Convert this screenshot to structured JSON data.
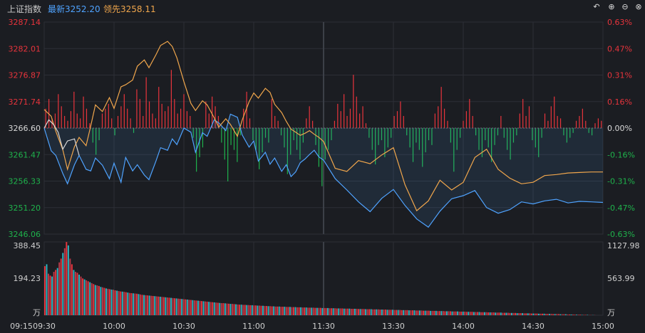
{
  "header": {
    "index_name": "上证指数",
    "latest_label": "最新3252.20",
    "leading_label": "领先3258.11",
    "icons": [
      "undo-icon",
      "zoom-in-icon",
      "zoom-out-icon",
      "close-icon"
    ]
  },
  "colors": {
    "background": "#1b1d22",
    "grid": "#2c2f36",
    "up": "#e8343c",
    "down": "#1fb34c",
    "latest_line": "#4fa3ff",
    "leading_line": "#f0a64c",
    "neutral": "#d8d8d8",
    "volume_teal": "#2bb8c4"
  },
  "chart_data": {
    "type": "line",
    "price_axis": {
      "left_ticks": [
        "3287.14",
        "3282.01",
        "3276.87",
        "3271.74",
        "3266.60",
        "3261.47",
        "3256.33",
        "3251.20",
        "3246.06"
      ],
      "right_ticks": [
        "0.63%",
        "0.47%",
        "0.31%",
        "0.16%",
        "0.00%",
        "-0.16%",
        "-0.31%",
        "-0.47%",
        "-0.63%"
      ],
      "ylim": [
        3246.06,
        3287.14
      ],
      "prev_close": 3266.6
    },
    "volume_axis": {
      "left_ticks": [
        "388.45",
        "194.23",
        "万"
      ],
      "right_ticks": [
        "1127.98",
        "563.99",
        "万"
      ],
      "ylim": [
        0,
        388.45
      ]
    },
    "time_axis": {
      "ticks": [
        "09:15",
        "09:30",
        "10:00",
        "10:30",
        "11:00",
        "11:30",
        "13:30",
        "14:00",
        "14:30",
        "15:00"
      ]
    },
    "series": [
      {
        "name": "最新",
        "color": "#4fa3ff",
        "x": [
          0,
          3,
          5,
          8,
          10,
          13,
          15,
          18,
          20,
          22,
          25,
          28,
          30,
          33,
          35,
          38,
          40,
          43,
          45,
          48,
          50,
          53,
          55,
          57,
          60,
          63,
          65,
          68,
          70,
          73,
          75,
          78,
          80,
          83,
          85,
          88,
          90,
          92,
          95,
          97,
          99,
          102,
          104,
          106,
          108,
          110,
          112,
          114,
          116,
          118,
          120,
          125,
          130,
          135,
          140,
          145,
          150,
          155,
          160,
          165,
          170,
          175,
          180,
          185,
          190,
          195,
          200,
          205,
          210,
          215,
          220,
          225,
          230,
          235,
          240
        ],
        "y": [
          3266.6,
          3262.2,
          3261.3,
          3257.8,
          3255.8,
          3259.5,
          3261.3,
          3258.6,
          3258.3,
          3260.8,
          3259.4,
          3256.8,
          3259.8,
          3256.1,
          3260.9,
          3258.3,
          3259.5,
          3257.5,
          3256.6,
          3260.2,
          3262.8,
          3262.3,
          3264.5,
          3263.4,
          3266.6,
          3265.8,
          3261.9,
          3265.7,
          3265.0,
          3268.2,
          3267.6,
          3266.1,
          3269.3,
          3268.7,
          3265.3,
          3262.9,
          3264.1,
          3260.2,
          3261.9,
          3259.6,
          3260.8,
          3258.2,
          3259.5,
          3257.2,
          3258.1,
          3259.9,
          3260.6,
          3261.5,
          3262.3,
          3261.0,
          3260.4,
          3256.8,
          3254.6,
          3252.3,
          3250.4,
          3253.0,
          3254.7,
          3251.6,
          3249.0,
          3247.4,
          3250.5,
          3252.9,
          3253.5,
          3254.5,
          3251.2,
          3250.1,
          3250.8,
          3252.3,
          3251.9,
          3252.5,
          3252.8,
          3252.1,
          3252.4,
          3252.3,
          3252.2
        ]
      },
      {
        "name": "领先",
        "color": "#f0a64c",
        "x": [
          0,
          3,
          5,
          8,
          10,
          13,
          15,
          18,
          20,
          22,
          25,
          28,
          30,
          33,
          35,
          38,
          40,
          43,
          45,
          48,
          50,
          53,
          55,
          57,
          60,
          63,
          65,
          68,
          70,
          73,
          75,
          78,
          80,
          83,
          85,
          88,
          90,
          92,
          95,
          97,
          99,
          102,
          104,
          106,
          108,
          110,
          112,
          114,
          116,
          118,
          120,
          125,
          130,
          135,
          140,
          145,
          150,
          155,
          160,
          165,
          170,
          175,
          180,
          185,
          190,
          195,
          200,
          205,
          210,
          215,
          220,
          225,
          230,
          235,
          240
        ],
        "y": [
          3270.2,
          3268.9,
          3266.0,
          3262.4,
          3258.6,
          3263.0,
          3264.8,
          3263.2,
          3267.0,
          3271.1,
          3269.8,
          3272.5,
          3270.4,
          3274.6,
          3275.0,
          3275.9,
          3278.6,
          3279.8,
          3278.3,
          3280.8,
          3282.6,
          3283.4,
          3282.4,
          3280.2,
          3275.6,
          3271.4,
          3270.0,
          3271.9,
          3271.1,
          3268.6,
          3266.8,
          3268.4,
          3267.3,
          3265.0,
          3268.1,
          3271.7,
          3273.4,
          3272.4,
          3274.3,
          3273.5,
          3271.2,
          3269.6,
          3267.9,
          3266.4,
          3265.8,
          3265.2,
          3265.6,
          3266.1,
          3265.4,
          3264.8,
          3264.0,
          3258.8,
          3258.2,
          3260.3,
          3259.7,
          3261.4,
          3262.8,
          3255.6,
          3250.6,
          3252.5,
          3256.5,
          3254.6,
          3256.1,
          3260.9,
          3262.5,
          3258.6,
          3256.9,
          3255.8,
          3256.1,
          3257.4,
          3257.6,
          3257.9,
          3258.0,
          3258.1,
          3258.1
        ]
      },
      {
        "name": "09:15-09:30",
        "color": "#d8d8d8",
        "x": [
          0,
          2,
          4,
          6,
          8,
          10,
          13,
          15
        ],
        "y": [
          3266.6,
          3268.2,
          3267.3,
          3265.8,
          3262.5,
          3264.1,
          3264.5,
          3261.3
        ]
      }
    ],
    "breadth_bars": {
      "description": "difference bars around 0.00% baseline",
      "values": [
        0.8,
        1.2,
        0.4,
        0.6,
        1.4,
        0.9,
        0.5,
        0.3,
        0.7,
        1.5,
        0.6,
        0.4,
        1.3,
        0.8,
        0.2,
        -0.6,
        -1.1,
        -0.5,
        0.6,
        0.8,
        1.0,
        0.4,
        -0.3,
        0.5,
        0.9,
        1.4,
        0.8,
        0.4,
        -0.2,
        1.6,
        1.2,
        0.5,
        2.1,
        1.1,
        0.6,
        0.4,
        1.7,
        1.0,
        0.7,
        0.9,
        2.4,
        1.2,
        0.6,
        0.8,
        1.4,
        0.7,
        0.5,
        -0.4,
        -1.8,
        -1.2,
        -0.8,
        1.1,
        0.6,
        1.3,
        0.9,
        0.5,
        -0.6,
        -1.3,
        -2.2,
        -0.7,
        -0.9,
        -1.4,
        -0.3,
        0.8,
        1.5,
        0.4,
        -0.5,
        -0.9,
        -1.7,
        -1.0,
        -0.4,
        -0.6,
        1.2,
        0.5,
        0.3,
        -0.3,
        -0.8,
        -1.9,
        -1.1,
        -0.5,
        -0.9,
        -1.3,
        -0.6,
        0.4,
        0.9,
        0.3,
        -0.7,
        -1.6,
        -2.4,
        -1.3,
        -0.9,
        -0.5,
        0.3,
        1.0,
        0.7,
        1.4,
        0.5,
        0.8,
        2.2,
        1.3,
        0.6,
        0.9,
        0.2,
        -0.4,
        -0.9,
        -1.5,
        -0.7,
        -0.5,
        -1.2,
        -0.8,
        -0.4,
        0.5,
        0.7,
        1.1,
        0.5,
        -0.3,
        -0.8,
        -1.4,
        -0.6,
        -0.9,
        -1.6,
        -1.0,
        -0.5,
        -0.7,
        0.6,
        0.9,
        1.7,
        0.8,
        0.3,
        -0.6,
        -1.8,
        -0.9,
        -0.4,
        0.3,
        0.7,
        1.2,
        0.5,
        -0.3,
        -0.9,
        -1.2,
        -0.5,
        -0.8,
        -1.4,
        -0.7,
        -0.3,
        0.5,
        -0.4,
        -0.9,
        -1.3,
        -0.6,
        -0.3,
        0.6,
        1.2,
        0.5,
        0.9,
        -0.5,
        -0.8,
        -1.2,
        -0.4,
        0.6,
        0.3,
        0.9,
        1.3,
        0.5,
        0.4,
        -0.3,
        -0.6,
        -0.4,
        -0.2,
        0.3,
        0.5,
        0.8,
        0.3,
        -0.2,
        -0.3,
        0.2,
        0.4,
        0.3
      ]
    },
    "volume_bars": {
      "x_first": 0,
      "values": [
        260,
        270,
        220,
        210,
        205,
        230,
        240,
        250,
        280,
        300,
        330,
        355,
        388,
        370,
        300,
        270,
        240,
        230,
        225,
        215,
        205,
        195,
        190,
        185,
        180,
        175,
        170,
        165,
        160,
        158,
        155,
        150,
        148,
        145,
        142,
        140,
        138,
        136,
        135,
        132,
        130,
        128,
        126,
        125,
        124,
        122,
        120,
        118,
        117,
        116,
        115,
        114,
        112,
        110,
        108,
        107,
        106,
        105,
        104,
        103,
        102,
        101,
        100,
        99,
        98,
        97,
        96,
        95,
        94,
        93,
        92,
        91,
        90,
        89,
        88,
        87,
        86,
        85,
        84,
        83,
        82,
        81,
        80,
        79,
        78,
        77,
        76,
        75,
        74,
        73,
        72,
        71,
        70,
        69,
        68,
        67,
        66,
        65,
        64,
        64,
        63,
        62,
        61,
        60,
        60,
        59,
        58,
        57,
        56,
        56,
        55,
        55,
        54,
        54,
        53,
        53,
        52,
        52,
        51,
        51,
        50,
        50,
        49,
        49,
        48,
        48,
        47,
        47,
        46,
        46,
        46,
        45,
        45,
        45,
        44,
        44,
        44,
        43,
        43,
        43,
        42,
        42,
        42,
        41,
        41,
        41,
        40,
        40,
        40,
        40,
        39,
        39,
        39,
        39,
        38,
        38,
        38,
        38,
        37,
        37,
        37,
        37,
        36,
        36,
        36,
        36,
        35,
        35,
        35,
        35,
        34,
        34,
        34,
        34,
        33,
        33,
        33,
        33,
        32,
        32,
        32,
        32,
        31,
        31,
        31,
        31,
        30,
        30,
        30,
        30,
        29,
        29,
        29,
        29,
        28,
        28,
        28,
        28,
        27,
        27,
        27,
        27,
        26,
        26,
        26,
        26,
        25,
        25,
        25,
        25,
        24,
        24,
        24,
        24,
        23,
        23,
        23,
        23,
        22,
        22,
        22,
        22,
        21,
        21,
        21,
        21,
        20,
        20,
        20,
        20,
        19,
        19,
        19,
        19,
        18,
        18,
        18,
        18,
        17,
        17,
        17,
        17,
        16,
        16,
        16,
        16,
        15,
        15,
        15,
        15,
        14,
        14,
        14,
        14,
        13,
        13,
        13,
        13,
        12,
        12,
        12,
        12,
        11,
        11,
        11,
        11,
        10,
        10,
        10,
        10,
        9,
        9,
        9,
        9,
        8,
        8,
        8,
        8,
        7,
        7,
        7,
        7,
        6,
        6,
        6,
        6,
        5,
        5,
        5,
        5,
        4,
        4,
        4,
        4,
        3,
        3,
        3,
        3,
        2,
        2,
        2,
        2,
        1,
        1,
        1,
        1,
        0,
        0,
        0,
        0
      ]
    },
    "grid": true,
    "legend": "top-left"
  }
}
